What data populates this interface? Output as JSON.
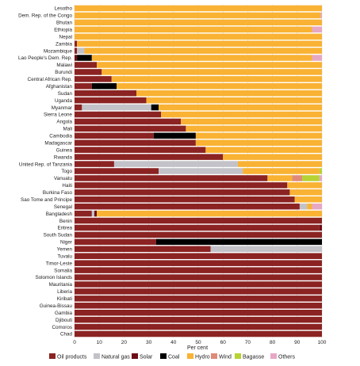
{
  "chart_data": {
    "type": "bar",
    "orientation": "horizontal",
    "stacked": true,
    "xlabel": "Per cent",
    "xlim": [
      0,
      100
    ],
    "xticks": [
      0,
      10,
      20,
      30,
      40,
      50,
      60,
      70,
      80,
      90,
      100
    ],
    "grid": "vertical",
    "legend_position": "bottom",
    "series": [
      {
        "name": "Oil products",
        "color": "#8b2323"
      },
      {
        "name": "Natural gas",
        "color": "#c2c2c8"
      },
      {
        "name": "Solar",
        "color": "#6e0d16"
      },
      {
        "name": "Coal",
        "color": "#000000"
      },
      {
        "name": "Hydro",
        "color": "#f9b233"
      },
      {
        "name": "Wind",
        "color": "#e08a7a"
      },
      {
        "name": "Bagasse",
        "color": "#b6d334"
      },
      {
        "name": "Others",
        "color": "#e6a8c4"
      }
    ],
    "categories": [
      "Lesotho",
      "Dem. Rep. of the Congo",
      "Bhutan",
      "Ethiopia",
      "Nepal",
      "Zambia",
      "Mozambique",
      "Lao People's Dem. Rep.",
      "Malawi",
      "Burundi",
      "Central African Rep.",
      "Afghanistan",
      "Sudan",
      "Uganda",
      "Myanmar",
      "Sierra Leone",
      "Angola",
      "Mali",
      "Cambodia",
      "Madagascar",
      "Guinea",
      "Rwanda",
      "United Rep. of Tanzania",
      "Togo",
      "Vanuatu",
      "Haiti",
      "Burkina Faso",
      "Sao Tome and Principe",
      "Senegal",
      "Bangladesh",
      "Benin",
      "Eritrea",
      "South Sudan",
      "Niger",
      "Yemen",
      "Tuvalu",
      "Timor-Leste",
      "Somalia",
      "Solomon Islands",
      "Mauritania",
      "Liberia",
      "Kiribati",
      "Guinea-Bissau",
      "Gambia",
      "Djibouti",
      "Comoros",
      "Chad"
    ],
    "values": [
      [
        0,
        0,
        0,
        0,
        100,
        0,
        0,
        0
      ],
      [
        0,
        0,
        0,
        0,
        99.5,
        0,
        0,
        0.5
      ],
      [
        0,
        0,
        0,
        0,
        100,
        0,
        0,
        0
      ],
      [
        0,
        0,
        0,
        0,
        96,
        0,
        0,
        4
      ],
      [
        0,
        0,
        0,
        0,
        100,
        0,
        0,
        0
      ],
      [
        1,
        0,
        0,
        0,
        99,
        0,
        0,
        0
      ],
      [
        1,
        3,
        0,
        0,
        96,
        0,
        0,
        0
      ],
      [
        0,
        0,
        1,
        6,
        89,
        0,
        0,
        4
      ],
      [
        9,
        0,
        0,
        0,
        91,
        0,
        0,
        0
      ],
      [
        11,
        0,
        0,
        0,
        89,
        0,
        0,
        0
      ],
      [
        15,
        0,
        0,
        0,
        85,
        0,
        0,
        0
      ],
      [
        7,
        0,
        0,
        10,
        83,
        0,
        0,
        0
      ],
      [
        25,
        0,
        0,
        0,
        75,
        0,
        0,
        0
      ],
      [
        29,
        0,
        0,
        0,
        71,
        0,
        0,
        0
      ],
      [
        3,
        28,
        0,
        3,
        66,
        0,
        0,
        0
      ],
      [
        35,
        0,
        0,
        0,
        65,
        0,
        0,
        0
      ],
      [
        43,
        0,
        0,
        0,
        57,
        0,
        0,
        0
      ],
      [
        45,
        0,
        0,
        0,
        55,
        0,
        0,
        0
      ],
      [
        32,
        0,
        0,
        17,
        51,
        0,
        0,
        0
      ],
      [
        49,
        0,
        0,
        0,
        51,
        0,
        0,
        0
      ],
      [
        53,
        0,
        0,
        0,
        47,
        0,
        0,
        0
      ],
      [
        60,
        0,
        0,
        0,
        40,
        0,
        0,
        0
      ],
      [
        16,
        50,
        0,
        0,
        34,
        0,
        0,
        0
      ],
      [
        34,
        34,
        0,
        0,
        31,
        0,
        1,
        0
      ],
      [
        78,
        0,
        0,
        0,
        10,
        4,
        7,
        1
      ],
      [
        86,
        0,
        0,
        0,
        14,
        0,
        0,
        0
      ],
      [
        87,
        0,
        0,
        0,
        13,
        0,
        0,
        0
      ],
      [
        89,
        0,
        0,
        0,
        11,
        0,
        0,
        0
      ],
      [
        91,
        3,
        0,
        0,
        2,
        0,
        0,
        4
      ],
      [
        7,
        1,
        1,
        0,
        91,
        0,
        0,
        0
      ],
      [
        100,
        0,
        0,
        0,
        0,
        0,
        0,
        0
      ],
      [
        99,
        0,
        1,
        0,
        0,
        0,
        0,
        0
      ],
      [
        100,
        0,
        0,
        0,
        0,
        0,
        0,
        0
      ],
      [
        33,
        0,
        0,
        67,
        0,
        0,
        0,
        0
      ],
      [
        55,
        45,
        0,
        0,
        0,
        0,
        0,
        0
      ],
      [
        100,
        0,
        0,
        0,
        0,
        0,
        0,
        0
      ],
      [
        100,
        0,
        0,
        0,
        0,
        0,
        0,
        0
      ],
      [
        100,
        0,
        0,
        0,
        0,
        0,
        0,
        0
      ],
      [
        100,
        0,
        0,
        0,
        0,
        0,
        0,
        0
      ],
      [
        100,
        0,
        0,
        0,
        0,
        0,
        0,
        0
      ],
      [
        100,
        0,
        0,
        0,
        0,
        0,
        0,
        0
      ],
      [
        100,
        0,
        0,
        0,
        0,
        0,
        0,
        0
      ],
      [
        100,
        0,
        0,
        0,
        0,
        0,
        0,
        0
      ],
      [
        100,
        0,
        0,
        0,
        0,
        0,
        0,
        0
      ],
      [
        100,
        0,
        0,
        0,
        0,
        0,
        0,
        0
      ],
      [
        100,
        0,
        0,
        0,
        0,
        0,
        0,
        0
      ],
      [
        100,
        0,
        0,
        0,
        0,
        0,
        0,
        0
      ]
    ]
  }
}
